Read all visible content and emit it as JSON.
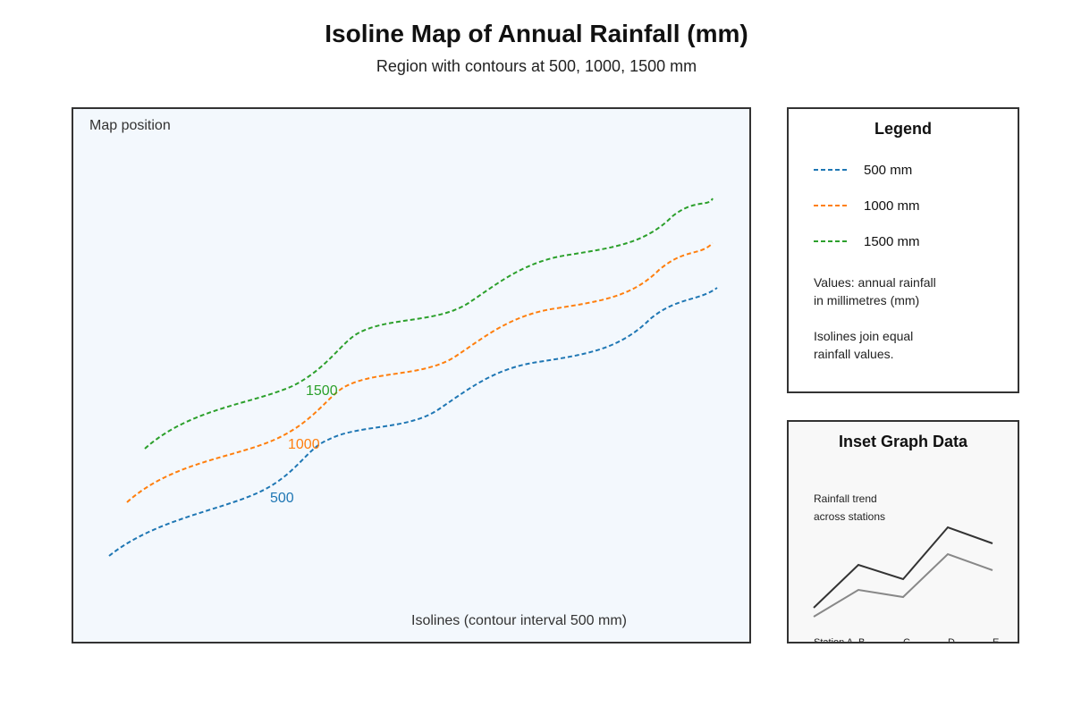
{
  "title": "Isoline Map of Annual Rainfall (mm)",
  "subtitle": "Region with contours at 500, 1000, 1500 mm",
  "map": {
    "position_label": "Map position",
    "caption": "Isolines (contour interval 500 mm)",
    "isolines": [
      {
        "value": 500,
        "label": "500",
        "color": "#1f77b4"
      },
      {
        "value": 1000,
        "label": "1000",
        "color": "#ff7f0e"
      },
      {
        "value": 1500,
        "label": "1500",
        "color": "#2ca02c"
      }
    ]
  },
  "legend": {
    "title": "Legend",
    "items": [
      {
        "label": "500 mm",
        "color": "#1f77b4"
      },
      {
        "label": "1000 mm",
        "color": "#ff7f0e"
      },
      {
        "label": "1500 mm",
        "color": "#2ca02c"
      }
    ],
    "note_values": [
      "Values: annual rainfall",
      "in millimetres (mm)"
    ],
    "note_isolines": [
      "Isolines join equal",
      "rainfall values."
    ]
  },
  "inset": {
    "title": "Inset Graph Data",
    "note": [
      "Rainfall trend",
      "across stations"
    ],
    "chart_data": {
      "type": "line",
      "categories": [
        "Station A",
        "B",
        "C",
        "D",
        "E"
      ],
      "series": [
        {
          "values": [
            20,
            68,
            52,
            110,
            92
          ],
          "color": "#333333"
        },
        {
          "values": [
            10,
            40,
            32,
            80,
            62
          ],
          "color": "#888888"
        }
      ],
      "ylim": [
        0,
        120
      ]
    }
  }
}
